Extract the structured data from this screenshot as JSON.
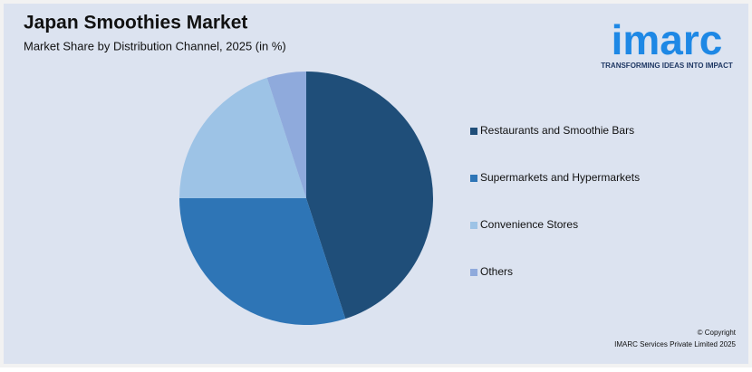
{
  "chart_data": {
    "type": "pie",
    "title": "Japan Smoothies Market",
    "subtitle": "Market Share by Distribution Channel, 2025 (in %)",
    "categories": [
      "Restaurants and Smoothie Bars",
      "Supermarkets and Hypermarkets",
      "Convenience Stores",
      "Others"
    ],
    "values": [
      45,
      30,
      20,
      5
    ],
    "colors": [
      "#1f4e79",
      "#2e75b6",
      "#9dc3e6",
      "#8faadc"
    ],
    "legend": "right"
  },
  "logo": {
    "name": "imarc",
    "tagline": "TRANSFORMING IDEAS INTO IMPACT"
  },
  "footer": {
    "line1": "© Copyright",
    "line2": "IMARC Services Private Limited 2025"
  }
}
